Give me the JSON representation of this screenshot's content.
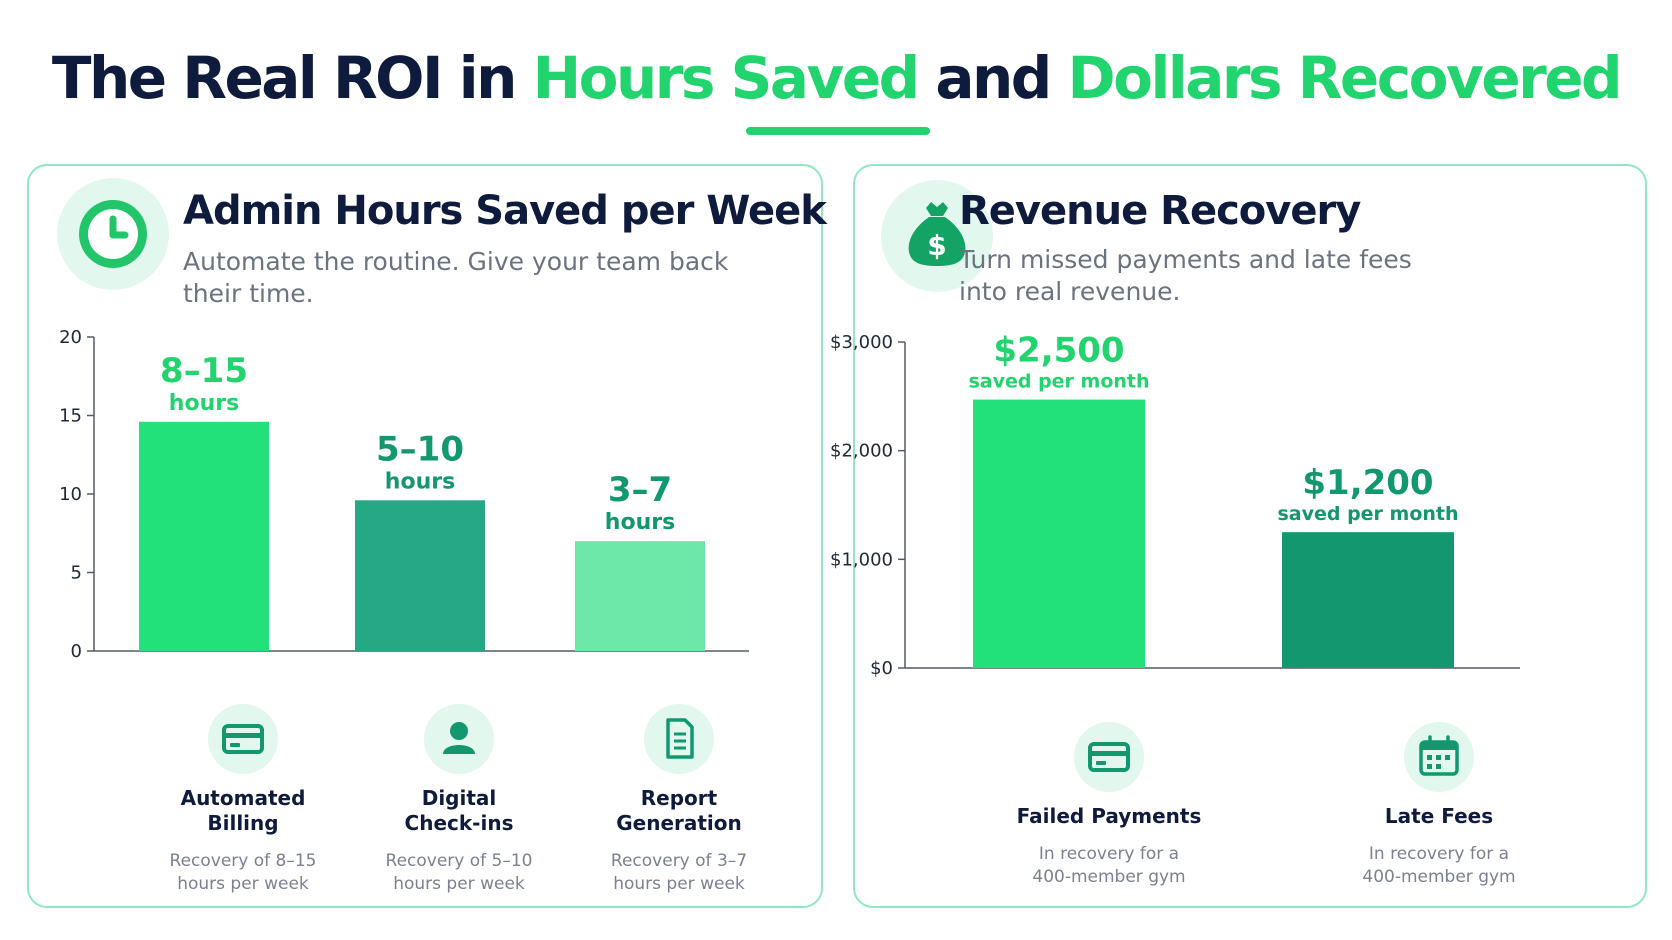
{
  "title": {
    "part1": "The Real ROI in ",
    "highlight1": "Hours Saved",
    "part2": " and ",
    "highlight2": "Dollars Recovered"
  },
  "colors": {
    "accent": "#22d46e",
    "dark_green": "#12976f",
    "navy": "#0f1b3d",
    "panel_border": "#8ee8c3",
    "icon_bg": "#e2f8ee"
  },
  "panels": {
    "hours": {
      "icon": "clock-icon",
      "title": "Admin Hours Saved per Week",
      "subtitle_line1": "Automate the routine. Give your team back",
      "subtitle_line2": "their time.",
      "categories": [
        {
          "label_line1": "Automated",
          "label_line2": "Billing",
          "icon": "credit-card-icon",
          "desc_line1": "Recovery of 8–15",
          "desc_line2": "hours per week"
        },
        {
          "label_line1": "Digital",
          "label_line2": "Check-ins",
          "icon": "user-icon",
          "desc_line1": "Recovery of 5–10",
          "desc_line2": "hours per week"
        },
        {
          "label_line1": "Report",
          "label_line2": "Generation",
          "icon": "document-icon",
          "desc_line1": "Recovery of 3–7",
          "desc_line2": "hours per week"
        }
      ]
    },
    "revenue": {
      "icon": "money-bag-icon",
      "title": "Revenue Recovery",
      "subtitle_line1": "Turn missed payments and late fees",
      "subtitle_line2": "into real revenue.",
      "categories": [
        {
          "label_line1": "Failed Payments",
          "icon": "credit-card-icon",
          "desc_line1": "In recovery for a",
          "desc_line2": "400-member gym"
        },
        {
          "label_line1": "Late Fees",
          "icon": "calendar-icon",
          "desc_line1": "In recovery for a",
          "desc_line2": "400-member gym"
        }
      ]
    }
  },
  "chart_data": [
    {
      "type": "bar",
      "title": "Admin Hours Saved per Week",
      "categories": [
        "Automated Billing",
        "Digital Check-ins",
        "Report Generation"
      ],
      "values": [
        14.6,
        9.6,
        7.0
      ],
      "value_labels": [
        "8–15",
        "5–10",
        "3–7"
      ],
      "value_units": [
        "hours",
        "hours",
        "hours"
      ],
      "label_colors": [
        "#22d46e",
        "#12976f",
        "#12976f"
      ],
      "bar_colors": [
        "#22e07a",
        "#27a885",
        "#6ee8a8"
      ],
      "ylim": [
        0,
        20
      ],
      "yticks": [
        0,
        5,
        10,
        15,
        20
      ],
      "ytick_labels": [
        "0",
        "5",
        "10",
        "15",
        "20"
      ],
      "xlabel": "",
      "ylabel": "",
      "grid": false
    },
    {
      "type": "bar",
      "title": "Revenue Recovery",
      "categories": [
        "Failed Payments",
        "Late Fees"
      ],
      "values": [
        2470,
        1250
      ],
      "value_labels": [
        "$2,500",
        "$1,200"
      ],
      "value_units": [
        "saved per month",
        "saved per month"
      ],
      "label_colors": [
        "#22d46e",
        "#12976f"
      ],
      "bar_colors": [
        "#22e07a",
        "#12976f"
      ],
      "ylim": [
        0,
        3000
      ],
      "yticks": [
        0,
        1000,
        2000,
        3000
      ],
      "ytick_labels": [
        "$0",
        "$1,000",
        "$2,000",
        "$3,000"
      ],
      "xlabel": "",
      "ylabel": "",
      "grid": false
    }
  ]
}
